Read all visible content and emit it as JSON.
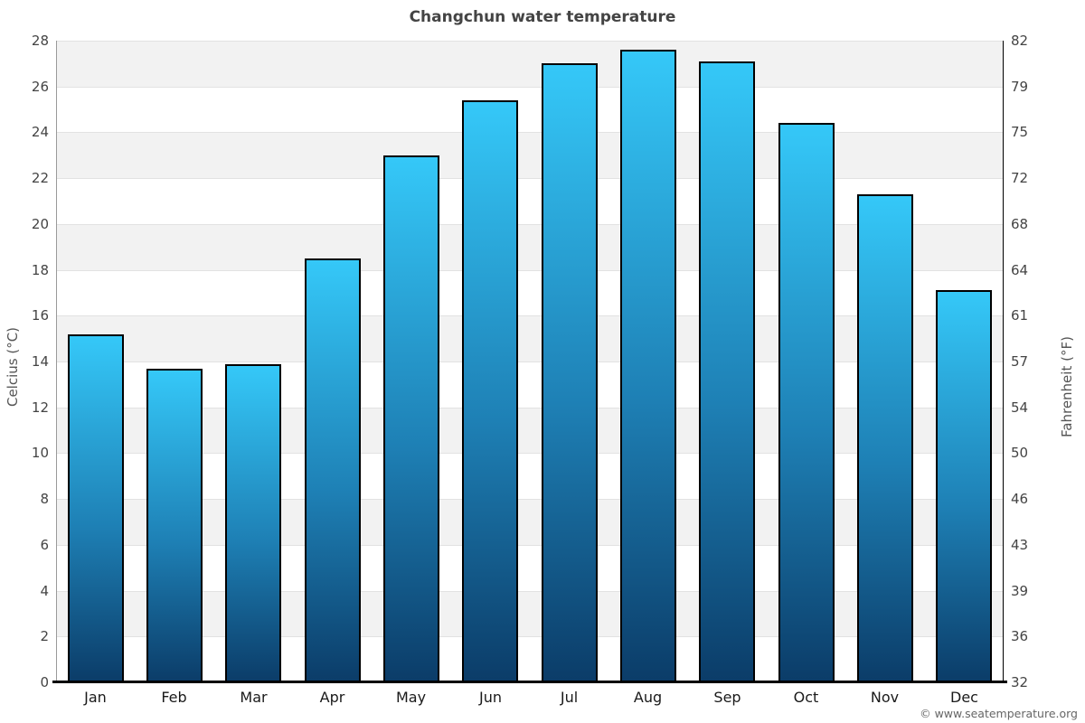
{
  "title": "Changchun water temperature",
  "watermark": "© www.seatemperature.org",
  "chart_data": {
    "type": "bar",
    "title": "Changchun water temperature",
    "categories": [
      "Jan",
      "Feb",
      "Mar",
      "Apr",
      "May",
      "Jun",
      "Jul",
      "Aug",
      "Sep",
      "Oct",
      "Nov",
      "Dec"
    ],
    "values": [
      15.2,
      13.7,
      13.9,
      18.5,
      23.0,
      25.4,
      27.0,
      27.6,
      27.1,
      24.4,
      21.3,
      17.1
    ],
    "unit": "°C",
    "ylabel_left": "Celcius (°C)",
    "ylabel_right": "Fahrenheit (°F)",
    "ylim": [
      0,
      28
    ],
    "ytick_step": 2,
    "yticks_celsius": [
      0,
      2,
      4,
      6,
      8,
      10,
      12,
      14,
      16,
      18,
      20,
      22,
      24,
      26,
      28
    ],
    "yticks_fahrenheit": [
      "32",
      "36",
      "39",
      "43",
      "46",
      "50",
      "54",
      "57",
      "61",
      "64",
      "68",
      "72",
      "75",
      "79",
      "82"
    ],
    "legend": "none",
    "grid": "horizontal-bands",
    "colors": {
      "bar_gradient_top": "#35c8f8",
      "bar_gradient_mid": "#1e80b5",
      "bar_gradient_bottom": "#0b3c68",
      "bar_border": "#000000",
      "band_shade": "#f2f2f2",
      "gridline": "#e2e2e2",
      "title_text": "#444444",
      "tick_text": "#444444",
      "month_text": "#1a1a1a",
      "axis_title_text": "#555555",
      "watermark_text": "#666666"
    }
  }
}
